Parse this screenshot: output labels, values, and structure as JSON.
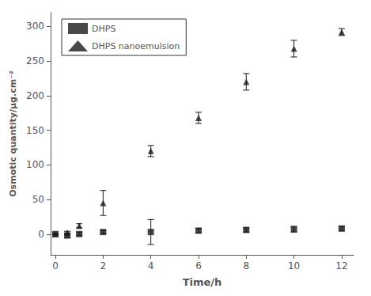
{
  "chart_data": {
    "type": "scatter",
    "x": [
      0,
      0.5,
      1,
      2,
      4,
      6,
      8,
      10,
      12
    ],
    "series": [
      {
        "name": "DHPS",
        "color": "#1a1a1a",
        "marker": "square",
        "values": [
          0,
          -2,
          0,
          3,
          3,
          5,
          6,
          7,
          8
        ],
        "yerr": [
          1,
          3,
          2,
          2,
          18,
          3,
          3,
          4,
          3
        ]
      },
      {
        "name": "DHPS nanoemulsion",
        "color": "#1a1a1a",
        "marker": "triangle",
        "values": [
          0,
          2,
          12,
          45,
          120,
          168,
          220,
          268,
          292
        ],
        "yerr": [
          1,
          2,
          3,
          18,
          8,
          8,
          12,
          12,
          5
        ]
      }
    ],
    "xlabel": "Time/h",
    "ylabel": "Osmotic quantity/μg.cm⁻²",
    "xlim": [
      -0.2,
      12.5
    ],
    "ylim": [
      -30,
      320
    ],
    "xticks": [
      0,
      2,
      4,
      6,
      8,
      10,
      12
    ],
    "yticks": [
      0,
      50,
      100,
      150,
      200,
      250,
      300
    ],
    "legend": "upper left",
    "grid": false
  }
}
